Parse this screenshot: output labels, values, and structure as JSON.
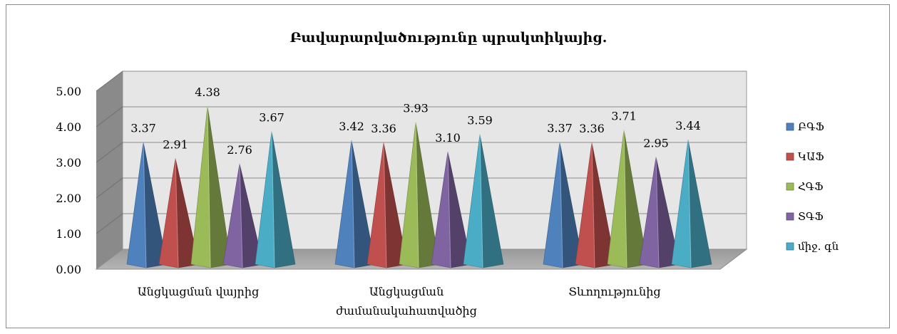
{
  "chart_data": {
    "type": "bar",
    "title": "Բավարարվածությունը պրակտիկայից.",
    "categories": [
      [
        "Անցկացման վայրից"
      ],
      [
        "Անցկացման",
        "ժամանակահատվածից"
      ],
      [
        "Տևողությունից"
      ]
    ],
    "series": [
      {
        "name": "ԲԳՖ",
        "color": "#4f81bd",
        "values": [
          3.37,
          3.42,
          3.37
        ],
        "labels": [
          "3.37",
          "3.42",
          "3.37"
        ]
      },
      {
        "name": "ԿԱՖ",
        "color": "#c0504d",
        "values": [
          2.91,
          3.36,
          3.36
        ],
        "labels": [
          "2.91",
          "3.36",
          "3.36"
        ]
      },
      {
        "name": "ՀԳՖ",
        "color": "#9bbb59",
        "values": [
          4.38,
          3.93,
          3.71
        ],
        "labels": [
          "4.38",
          "3.93",
          "3.71"
        ]
      },
      {
        "name": "ՏԳՖ",
        "color": "#8064a2",
        "values": [
          2.76,
          3.1,
          2.95
        ],
        "labels": [
          "2.76",
          "3.10",
          "2.95"
        ]
      },
      {
        "name": "միջ. գն",
        "color": "#4bacc6",
        "values": [
          3.67,
          3.59,
          3.44
        ],
        "labels": [
          "3.67",
          "3.59",
          "3.44"
        ]
      }
    ],
    "ylim": [
      0,
      5
    ],
    "yticks": [
      "0.00",
      "1.00",
      "2.00",
      "3.00",
      "4.00",
      "5.00"
    ],
    "grid": true,
    "legend_position": "right",
    "shape": "pyramid-3d"
  }
}
